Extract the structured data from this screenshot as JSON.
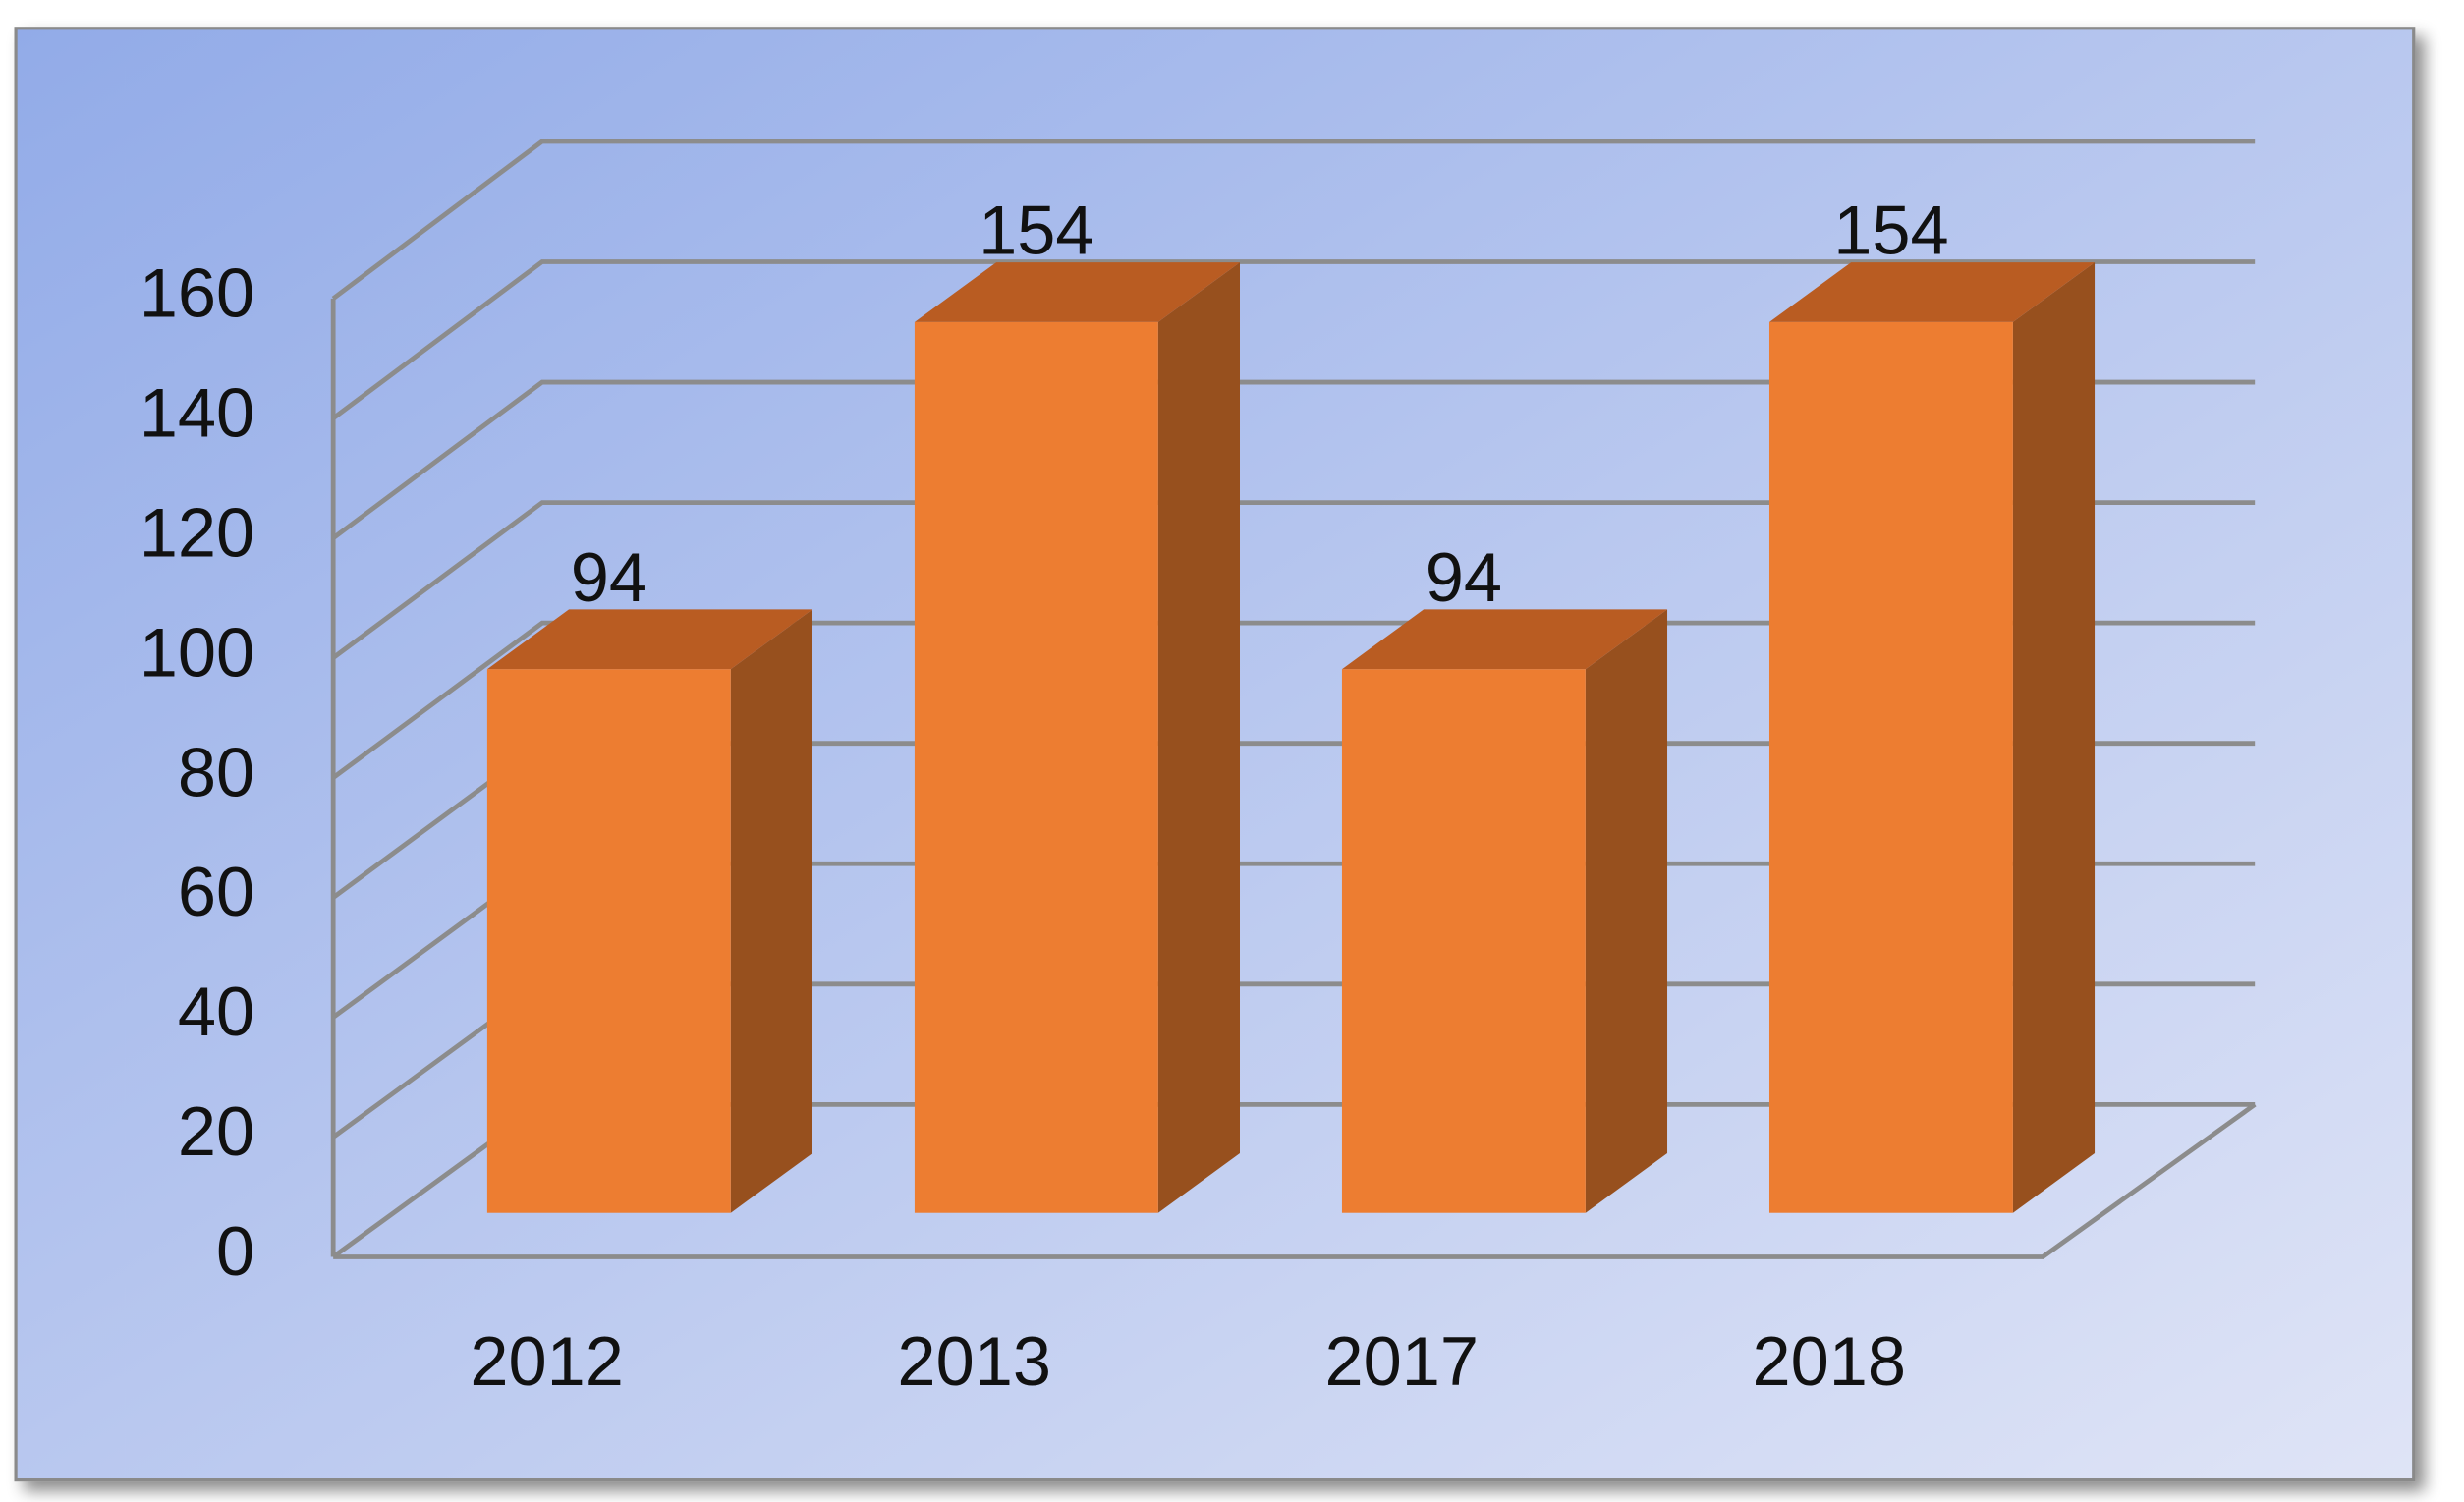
{
  "chart_data": {
    "type": "bar3d",
    "categories": [
      "2012",
      "2013",
      "2017",
      "2018"
    ],
    "values": [
      94,
      154,
      94,
      154
    ],
    "colors": {
      "front": "#ed7d31",
      "top": "#b95c22",
      "side": "#97501e"
    },
    "ylim": [
      0,
      160
    ],
    "yticks": [
      0,
      20,
      40,
      60,
      80,
      100,
      120,
      140,
      160
    ],
    "grid": true
  }
}
